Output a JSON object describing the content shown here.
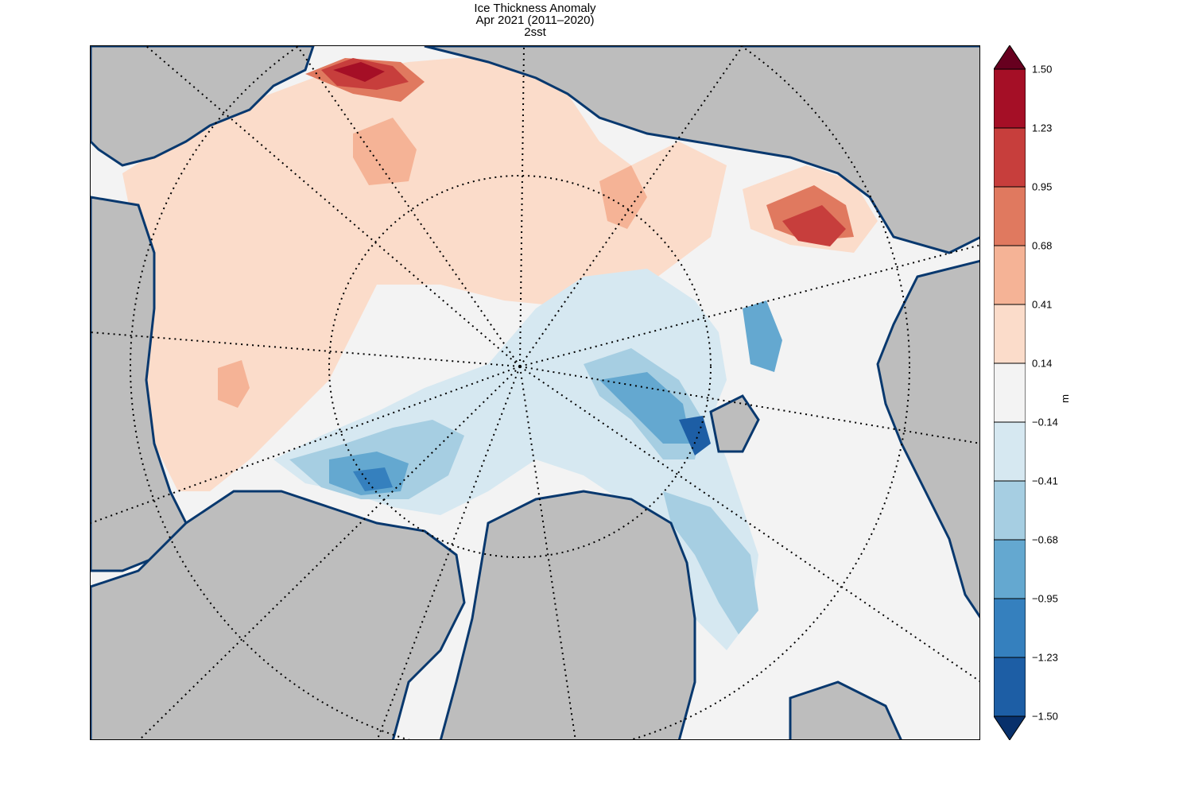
{
  "title": {
    "line1": "Ice Thickness Anomaly",
    "line2": "Apr 2021 (2011–2020)",
    "line3": "2sst"
  },
  "colorbar": {
    "unit": "m",
    "tick_labels": [
      "1.50",
      "1.23",
      "0.95",
      "0.68",
      "0.41",
      "0.14",
      "−0.14",
      "−0.41",
      "−0.68",
      "−0.95",
      "−1.23",
      "−1.50"
    ],
    "colors": [
      "#a50f26",
      "#c73e3c",
      "#e0795f",
      "#f5b396",
      "#fbdcca",
      "#f3f3f3",
      "#d6e8f1",
      "#a6cee2",
      "#64a8d0",
      "#3580be",
      "#1d5ea5"
    ],
    "extend_low_color": "#08306b",
    "extend_high_color": "#67001f"
  },
  "map": {
    "projection": "north-polar-stereographic",
    "land_color": "#bdbdbd",
    "coast_ice_color": "#08386e",
    "gridlines": "dotted"
  }
}
